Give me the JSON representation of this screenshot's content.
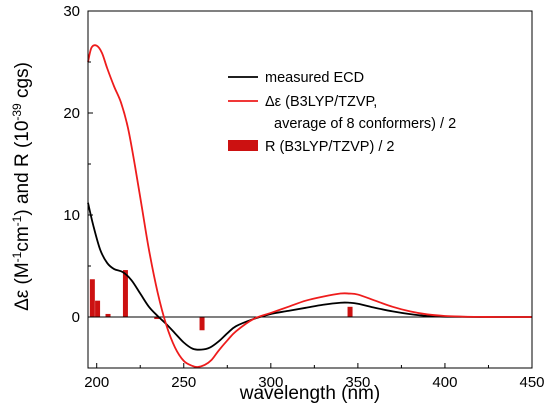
{
  "chart_data": {
    "type": "line",
    "xlabel": "wavelength (nm)",
    "ylabel_parts": [
      "Δε (M",
      "-1",
      "cm",
      "-1",
      ") and R (10",
      "-39",
      " cgs)"
    ],
    "xlim": [
      195,
      450
    ],
    "ylim": [
      -5,
      30
    ],
    "x_ticks": [
      200,
      250,
      300,
      350,
      400,
      450
    ],
    "y_ticks": [
      0,
      10,
      20,
      30
    ],
    "x_tick_labels": [
      "200",
      "250",
      "300",
      "350",
      "400",
      "450"
    ],
    "y_tick_labels": [
      "0",
      "10",
      "20",
      "30"
    ],
    "legend_position": "upper-right",
    "legend": {
      "measured": "measured ECD",
      "calc_line1": "Δε (B3LYP/TZVP,",
      "calc_line2": "average of 8 conformers) / 2",
      "bars": "R (B3LYP/TZVP) / 2"
    },
    "series": [
      {
        "name": "measured ECD",
        "type": "line",
        "color": "#000000",
        "x": [
          195,
          198,
          202,
          206,
          210,
          215,
          220,
          225,
          230,
          235,
          240,
          245,
          250,
          255,
          260,
          265,
          270,
          275,
          280,
          290,
          300,
          310,
          320,
          330,
          340,
          345,
          350,
          360,
          370,
          380,
          390,
          400,
          420,
          450
        ],
        "y": [
          11.2,
          9.0,
          6.6,
          5.3,
          4.7,
          4.4,
          3.6,
          2.3,
          1.0,
          0.1,
          -0.7,
          -1.6,
          -2.5,
          -3.1,
          -3.2,
          -3.0,
          -2.4,
          -1.6,
          -0.9,
          -0.2,
          0.3,
          0.6,
          0.9,
          1.2,
          1.4,
          1.4,
          1.3,
          0.9,
          0.55,
          0.28,
          0.1,
          0.03,
          0.0,
          0.0
        ]
      },
      {
        "name": "Δε (B3LYP/TZVP, average of 8 conformers) / 2",
        "type": "line",
        "color": "#ee1c1c",
        "x": [
          195,
          197,
          200,
          203,
          206,
          210,
          214,
          218,
          222,
          226,
          230,
          235,
          240,
          245,
          250,
          255,
          258,
          262,
          266,
          270,
          275,
          280,
          290,
          300,
          310,
          320,
          330,
          340,
          345,
          350,
          360,
          370,
          380,
          390,
          400,
          410,
          420,
          430,
          450
        ],
        "y": [
          25.0,
          26.4,
          26.6,
          25.9,
          24.4,
          22.6,
          21.0,
          18.5,
          14.8,
          10.7,
          6.6,
          2.4,
          -0.8,
          -3.0,
          -4.3,
          -4.8,
          -4.9,
          -4.7,
          -4.2,
          -3.3,
          -2.3,
          -1.4,
          -0.2,
          0.4,
          1.0,
          1.6,
          2.0,
          2.3,
          2.3,
          2.2,
          1.6,
          1.0,
          0.55,
          0.25,
          0.1,
          0.04,
          0.01,
          0.0,
          0.0
        ]
      },
      {
        "name": "R (B3LYP/TZVP) / 2",
        "type": "bar",
        "color": "#cc1111",
        "x": [
          197.5,
          200.5,
          206.5,
          216.5,
          234.5,
          260.5,
          345.5
        ],
        "y": [
          3.7,
          1.6,
          0.3,
          4.6,
          -0.2,
          -1.3,
          1.0
        ]
      }
    ]
  }
}
